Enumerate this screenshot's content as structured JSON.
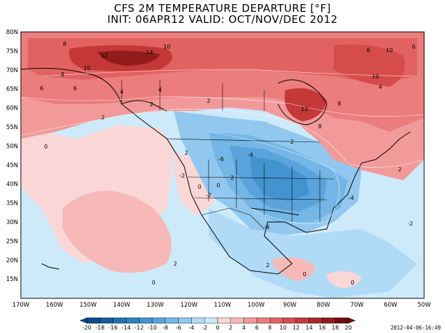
{
  "title": {
    "line1": "CFS 2M TEMPERATURE DEPARTURE [°F]",
    "line2": "INIT: 06APR12 VALID: OCT/NOV/DEC 2012"
  },
  "axes": {
    "lat_labels": [
      "80N",
      "75N",
      "70N",
      "65N",
      "60N",
      "55N",
      "50N",
      "45N",
      "40N",
      "35N",
      "30N",
      "25N",
      "20N",
      "15N"
    ],
    "lon_labels": [
      "170W",
      "160W",
      "150W",
      "140W",
      "130W",
      "120W",
      "110W",
      "100W",
      "90W",
      "80W",
      "70W",
      "60W",
      "50W"
    ]
  },
  "contour_labels": [
    {
      "text": "8"
    },
    {
      "text": "12"
    },
    {
      "text": "10"
    },
    {
      "text": "14"
    },
    {
      "text": "10"
    },
    {
      "text": "8"
    },
    {
      "text": "6"
    },
    {
      "text": "4"
    },
    {
      "text": "2"
    },
    {
      "text": "6"
    },
    {
      "text": "4"
    },
    {
      "text": "2"
    },
    {
      "text": "2"
    },
    {
      "text": "0"
    },
    {
      "text": "-2"
    },
    {
      "text": "-6"
    },
    {
      "text": "-4"
    },
    {
      "text": "2"
    },
    {
      "text": "0"
    },
    {
      "text": "2"
    },
    {
      "text": "0"
    },
    {
      "text": "-2"
    },
    {
      "text": "-6"
    },
    {
      "text": "-4"
    },
    {
      "text": "-2"
    },
    {
      "text": "2"
    },
    {
      "text": "0"
    },
    {
      "text": "0"
    },
    {
      "text": "2"
    },
    {
      "text": "0"
    },
    {
      "text": "12"
    },
    {
      "text": "10"
    },
    {
      "text": "8"
    },
    {
      "text": "4"
    },
    {
      "text": "2"
    },
    {
      "text": "8"
    },
    {
      "text": "6"
    },
    {
      "text": "10"
    },
    {
      "text": "2"
    },
    {
      "text": "6"
    }
  ],
  "colorbar": {
    "labels": [
      "-20",
      "-18",
      "-16",
      "-14",
      "-12",
      "-10",
      "-8",
      "-6",
      "-4",
      "-2",
      "0",
      "2",
      "4",
      "6",
      "8",
      "10",
      "12",
      "14",
      "16",
      "18",
      "20"
    ],
    "colors": [
      "#0b4c8a",
      "#165c9e",
      "#2270b2",
      "#2f82c4",
      "#4493d1",
      "#5aa3dc",
      "#74b6e6",
      "#92c8ef",
      "#b1daf6",
      "#cdeafb",
      "#fbd6d6",
      "#f7b8b8",
      "#f29a9a",
      "#ec7d7d",
      "#e26262",
      "#d64b4b",
      "#c43838",
      "#ad2828",
      "#921b1b",
      "#6f0f0f"
    ]
  },
  "timestamp": "2012-04-06-16:49"
}
